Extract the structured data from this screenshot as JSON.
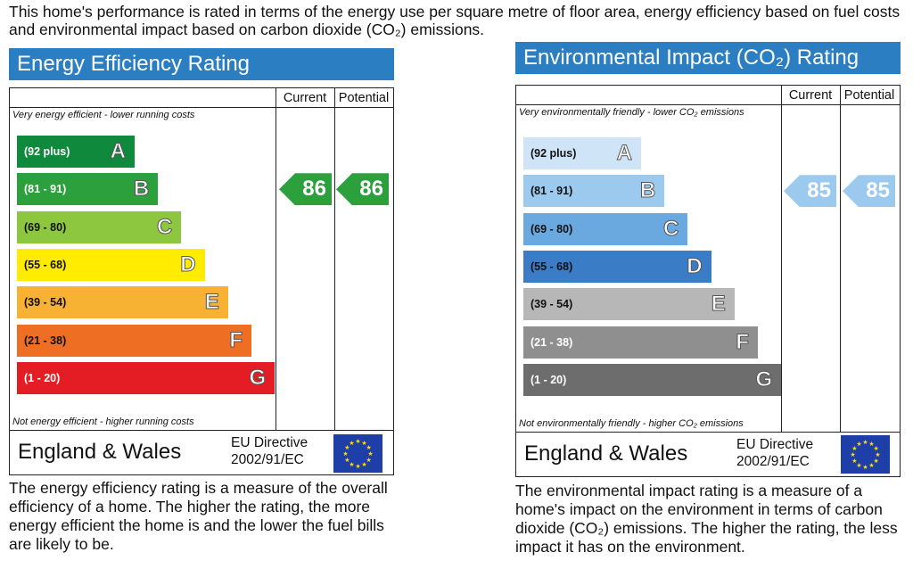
{
  "intro": "This home's performance is rated in terms of the energy use per square metre of floor area, energy efficiency based on fuel costs and environmental impact based on carbon dioxide (CO₂) emissions.",
  "chart_data": [
    {
      "type": "table",
      "title": "Energy Efficiency Rating",
      "columns": [
        "Current",
        "Potential"
      ],
      "top_note": "Very energy efficient - lower running costs",
      "bottom_note": "Not energy efficient - higher running costs",
      "bands": [
        {
          "range": "(92 plus)",
          "letter": "A",
          "color": "#0f8a3c",
          "range_color": "#ffffff"
        },
        {
          "range": "(81 - 91)",
          "letter": "B",
          "color": "#2ca03c",
          "range_color": "#ffffff"
        },
        {
          "range": "(69 - 80)",
          "letter": "C",
          "color": "#8dc63f",
          "range_color": "#111111"
        },
        {
          "range": "(55 - 68)",
          "letter": "D",
          "color": "#ffec00",
          "range_color": "#111111"
        },
        {
          "range": "(39 - 54)",
          "letter": "E",
          "color": "#f7b133",
          "range_color": "#111111"
        },
        {
          "range": "(21 - 38)",
          "letter": "F",
          "color": "#ee6e24",
          "range_color": "#111111"
        },
        {
          "range": "(1 - 20)",
          "letter": "G",
          "color": "#e31d23",
          "range_color": "#ffffff"
        }
      ],
      "current": {
        "value": 86,
        "band": "B",
        "color": "#2ca03c"
      },
      "potential": {
        "value": 86,
        "band": "B",
        "color": "#2ca03c"
      },
      "footer_region": "England & Wales",
      "footer_directive": [
        "EU Directive",
        "2002/91/EC"
      ],
      "description": "The energy efficiency rating is a measure of the overall efficiency of a home. The higher the rating, the more energy efficient the home is and the lower the fuel bills are likely to be."
    },
    {
      "type": "table",
      "title": "Environmental Impact (CO₂) Rating",
      "columns": [
        "Current",
        "Potential"
      ],
      "top_note": "Very environmentally friendly - lower CO₂ emissions",
      "bottom_note": "Not environmentally friendly - higher CO₂ emissions",
      "bands": [
        {
          "range": "(92 plus)",
          "letter": "A",
          "color": "#cfe4f7",
          "range_color": "#111111"
        },
        {
          "range": "(81 - 91)",
          "letter": "B",
          "color": "#9ccaef",
          "range_color": "#111111"
        },
        {
          "range": "(69 - 80)",
          "letter": "C",
          "color": "#6aa9e0",
          "range_color": "#111111"
        },
        {
          "range": "(55 - 68)",
          "letter": "D",
          "color": "#3b7cc6",
          "range_color": "#111111"
        },
        {
          "range": "(39 - 54)",
          "letter": "E",
          "color": "#b7b7b7",
          "range_color": "#111111"
        },
        {
          "range": "(21 - 38)",
          "letter": "F",
          "color": "#8f8f8f",
          "range_color": "#ffffff"
        },
        {
          "range": "(1 - 20)",
          "letter": "G",
          "color": "#6d6d6d",
          "range_color": "#ffffff"
        }
      ],
      "current": {
        "value": 85,
        "band": "B",
        "color": "#9ccaef"
      },
      "potential": {
        "value": 85,
        "band": "B",
        "color": "#9ccaef"
      },
      "footer_region": "England & Wales",
      "footer_directive": [
        "EU Directive",
        "2002/91/EC"
      ],
      "description": "The environmental impact rating is a measure of a home's impact on the environment in terms of carbon dioxide (CO₂) emissions. The higher the rating, the less impact it has on the environment."
    }
  ],
  "icons": {
    "eu_flag": "eu-flag-icon"
  },
  "colors": {
    "title_bar": "#2b7ec1"
  }
}
